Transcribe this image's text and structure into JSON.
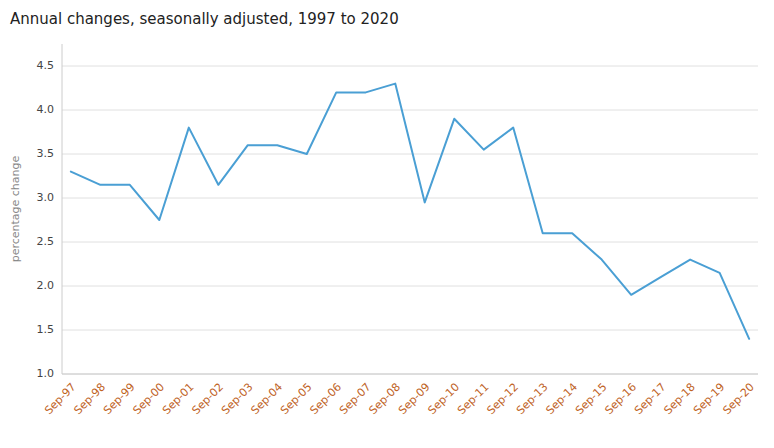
{
  "chart_data": {
    "type": "line",
    "title": "Annual changes, seasonally adjusted, 1997 to 2020",
    "y_label": "percentage change",
    "color": "#4a9fd4",
    "categories": [
      "Sep-97",
      "Sep-98",
      "Sep-99",
      "Sep-00",
      "Sep-01",
      "Sep-02",
      "Sep-03",
      "Sep-04",
      "Sep-05",
      "Sep-06",
      "Sep-07",
      "Sep-08",
      "Sep-09",
      "Sep-10",
      "Sep-11",
      "Sep-12",
      "Sep-13",
      "Sep-14",
      "Sep-15",
      "Sep-16",
      "Sep-17",
      "Sep-18",
      "Sep-19",
      "Sep-20"
    ],
    "values": [
      3.3,
      3.15,
      3.15,
      2.75,
      3.8,
      3.15,
      3.6,
      3.6,
      3.5,
      4.2,
      4.2,
      4.3,
      2.95,
      3.9,
      3.55,
      3.8,
      2.6,
      2.6,
      2.3,
      1.9,
      2.1,
      2.3,
      2.15,
      1.4
    ],
    "ylim": [
      1.0,
      4.75
    ],
    "yticks": [
      {
        "value": 1.0,
        "label": "1.0"
      },
      1.5,
      {
        "value": 2.0,
        "label": "2.0"
      },
      2.5,
      {
        "value": 3.0,
        "label": "3.0"
      },
      3.5,
      {
        "value": 4.0,
        "label": "4.0"
      },
      4.5
    ],
    "grid": true
  }
}
